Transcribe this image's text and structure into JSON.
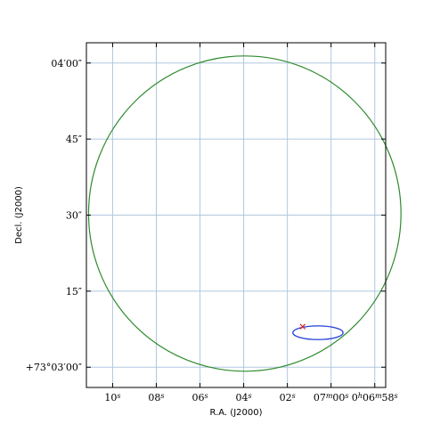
{
  "chart_data": {
    "type": "scatter",
    "xlabel": "R.A. (J2000)",
    "ylabel": "Decl. (J2000)",
    "grid": true,
    "x_ticks": [
      {
        "label": "10s",
        "ra_sec": 10
      },
      {
        "label": "08s",
        "ra_sec": 8
      },
      {
        "label": "06s",
        "ra_sec": 6
      },
      {
        "label": "04s",
        "ra_sec": 4
      },
      {
        "label": "02s",
        "ra_sec": 2
      },
      {
        "label": "07m00s",
        "ra_sec": 0
      },
      {
        "label": "0h06m58s",
        "ra_sec": -2
      }
    ],
    "y_ticks": [
      {
        "label": "+73°03′00″",
        "dec_arcsec": 0
      },
      {
        "label": "15″",
        "dec_arcsec": 15
      },
      {
        "label": "30″",
        "dec_arcsec": 30
      },
      {
        "label": "45″",
        "dec_arcsec": 45
      },
      {
        "label": "04′00″",
        "dec_arcsec": 60
      }
    ],
    "xlim_ra_sec": [
      11.2,
      -2.5
    ],
    "ylim_dec_arcsec": [
      -4,
      64
    ],
    "large_circle": {
      "center_ra_sec": 3.95,
      "center_dec_arcsec": 30.3,
      "width_ra_sec": 14.3,
      "height_dec_arcsec": 62.2,
      "color": "#2e8b2e"
    },
    "small_ellipse": {
      "center_ra_sec": 0.6,
      "center_dec_arcsec": 6.8,
      "width_ra_sec": 2.3,
      "height_dec_arcsec": 2.7,
      "color": "#1f3fd6"
    },
    "marker": {
      "ra_sec": 1.3,
      "dec_arcsec": 8.0,
      "symbol": "x",
      "color": "#e02020"
    },
    "grid_color": "#b0c8e0"
  }
}
